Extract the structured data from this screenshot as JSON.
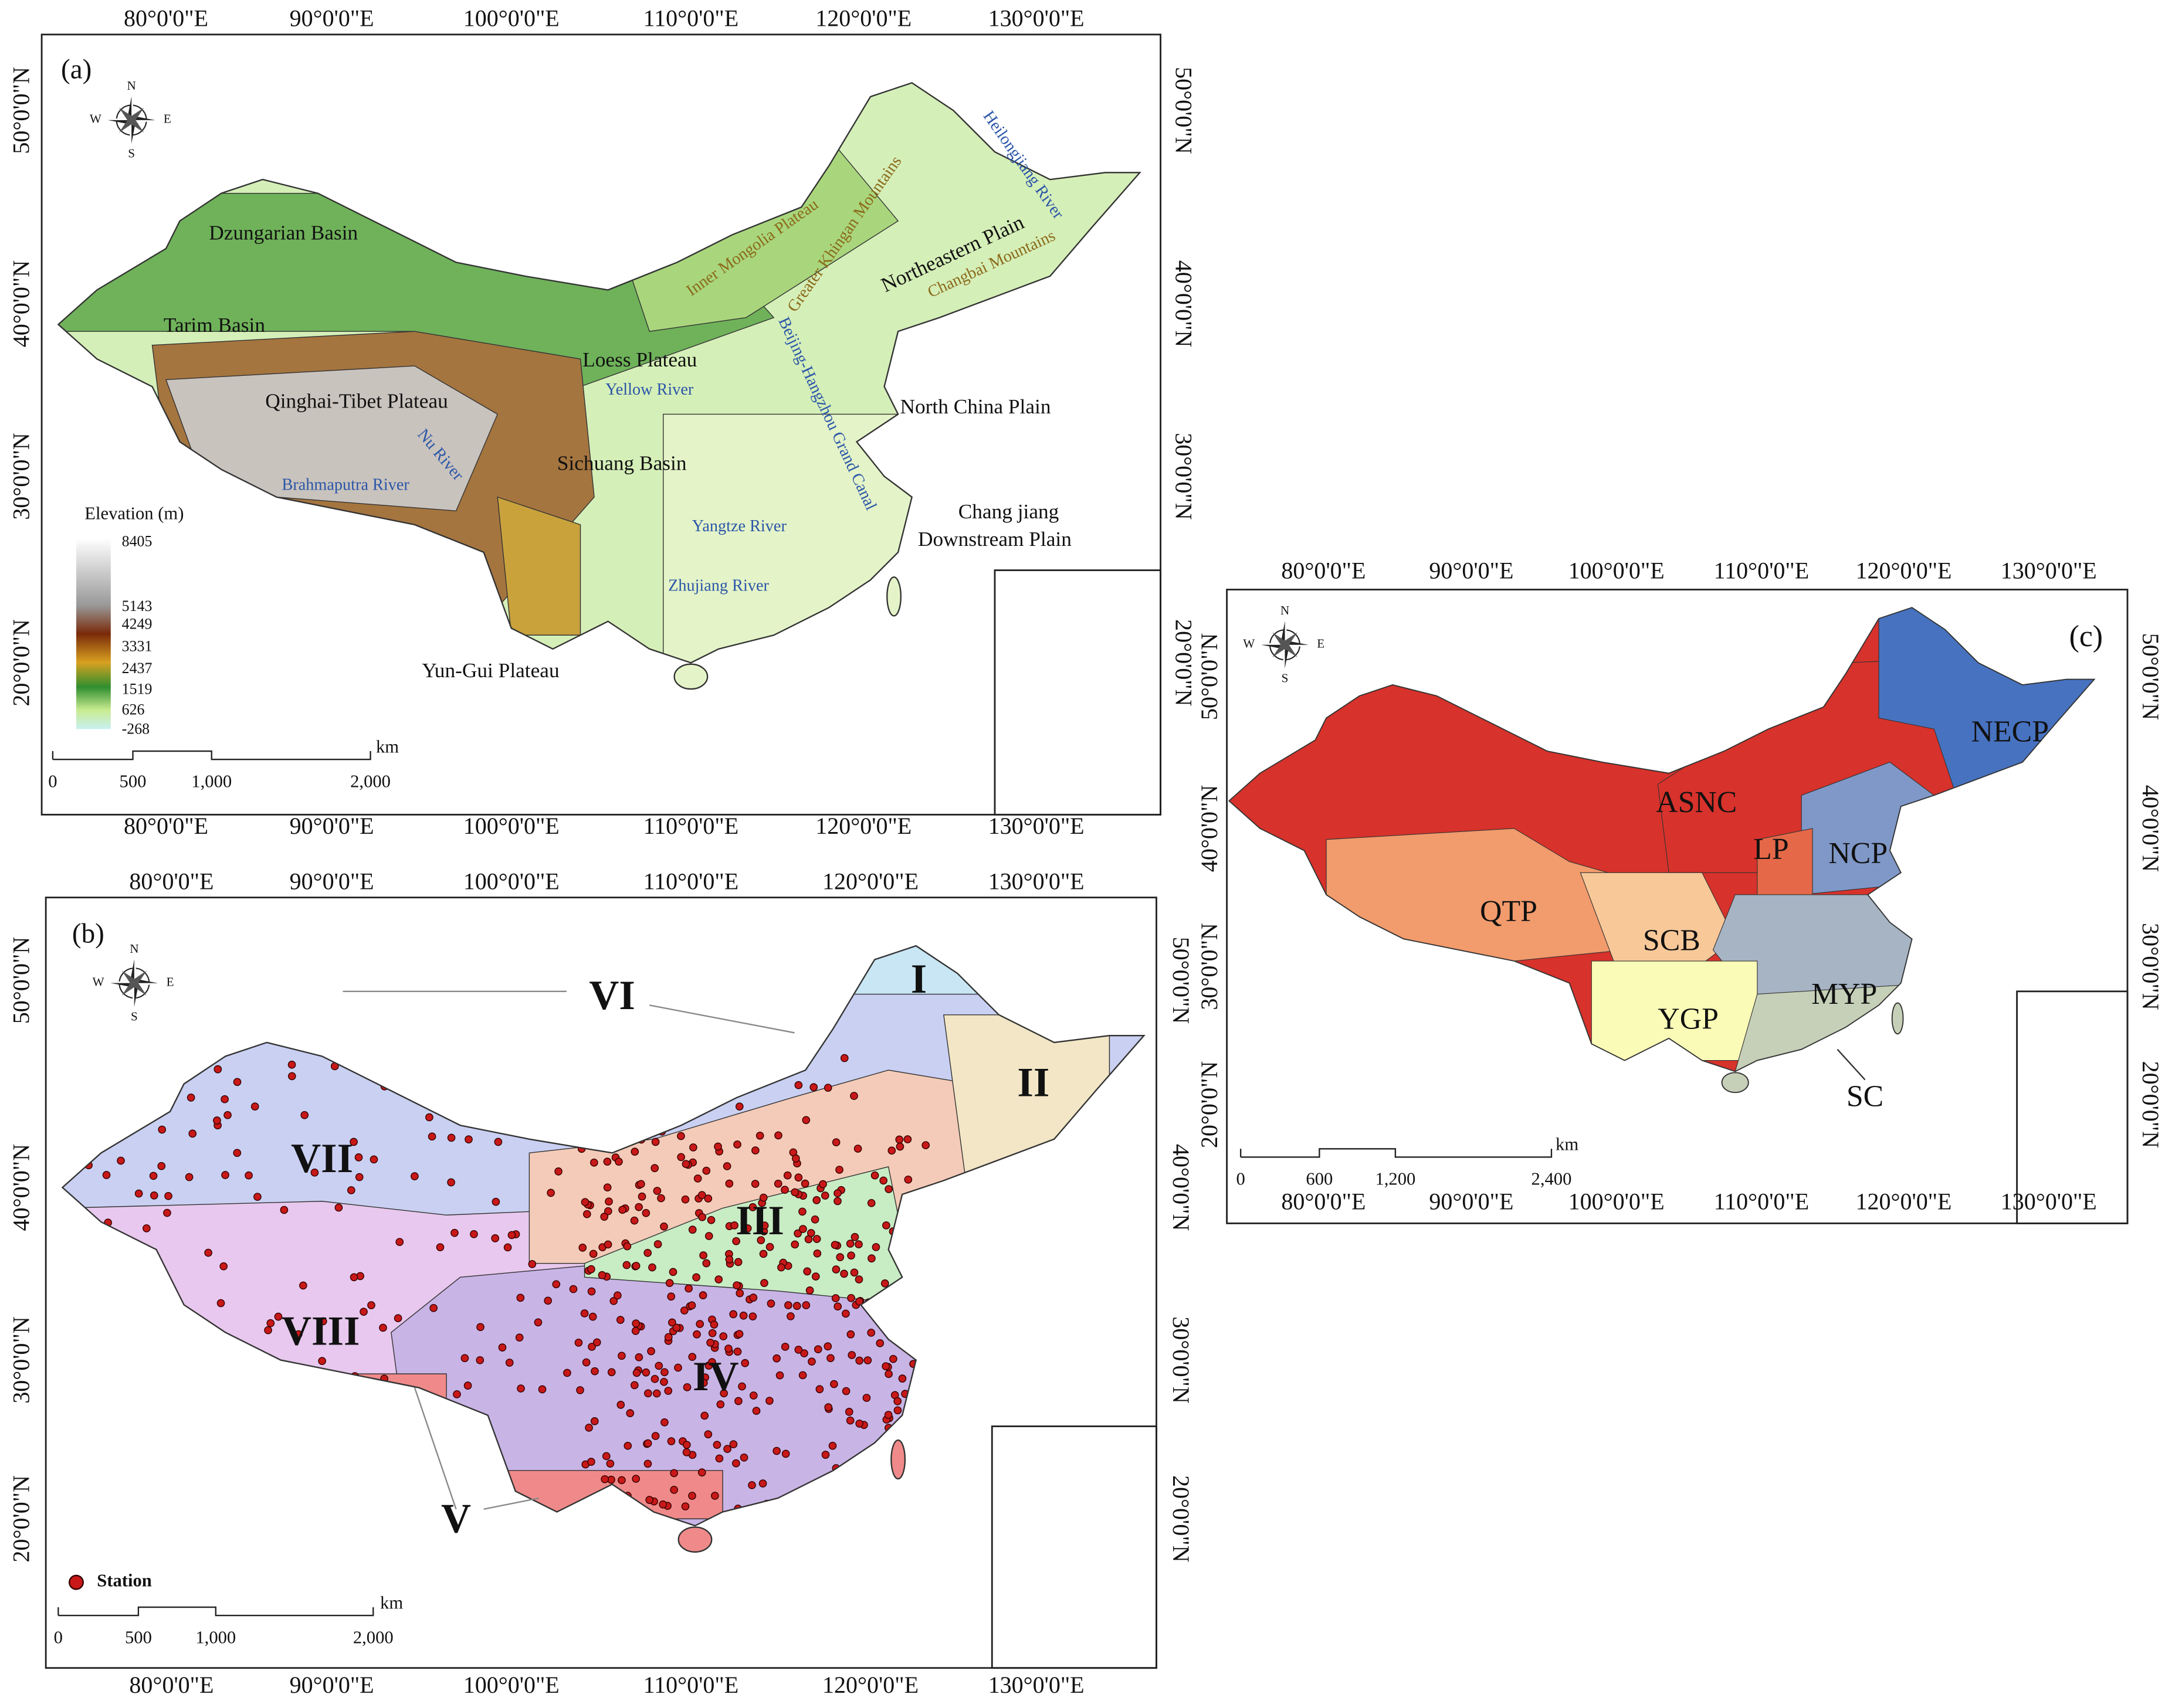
{
  "lon_labels": [
    "80°0'0\"E",
    "90°0'0\"E",
    "100°0'0\"E",
    "110°0'0\"E",
    "120°0'0\"E",
    "130°0'0\"E"
  ],
  "lat_labels": [
    "50°0'0\"N",
    "40°0'0\"N",
    "30°0'0\"N",
    "20°0'0\"N"
  ],
  "compass": [
    "N",
    "S",
    "W",
    "E"
  ],
  "panel_a": {
    "label": "(a)",
    "places": [
      "Dzungarian Basin",
      "Tarim Basin",
      "Qinghai-Tibet Plateau",
      "Loess Plateau",
      "Sichuang Basin",
      "Northeastern Plain",
      "North China Plain",
      "Chang jiang",
      "Downstream Plain",
      "Yun-Gui Plateau"
    ],
    "rivers": [
      "Yellow River",
      "Brahmaputra River",
      "Yangtze River",
      "Zhujiang River",
      "Heilongjiang River",
      "Nu River",
      "Beijing-Hangzhou Grand Canal"
    ],
    "mountains": [
      "Inner Mongolia Plateau",
      "Greater Khingan Mountains",
      "Changbai Mountains"
    ],
    "legend": {
      "title": "Elevation (m)",
      "values": [
        8405,
        5143,
        4249,
        3331,
        2437,
        1519,
        626,
        -268
      ]
    },
    "scale": {
      "ticks": [
        "0",
        "500",
        "1,000",
        "2,000"
      ],
      "unit": "km"
    }
  },
  "panel_b": {
    "label": "(b)",
    "zones": [
      "I",
      "II",
      "III",
      "IV",
      "V",
      "VI",
      "VII",
      "VIII"
    ],
    "legend": "Station",
    "scale": {
      "ticks": [
        "0",
        "500",
        "1,000",
        "2,000"
      ],
      "unit": "km"
    }
  },
  "panel_c": {
    "label": "(c)",
    "regions": [
      "NECP",
      "ASNC",
      "LP",
      "NCP",
      "QTP",
      "SCB",
      "MYP",
      "YGP",
      "SC"
    ],
    "scale": {
      "ticks": [
        "0",
        "600",
        "1,200",
        "2,400"
      ],
      "unit": "km"
    }
  }
}
